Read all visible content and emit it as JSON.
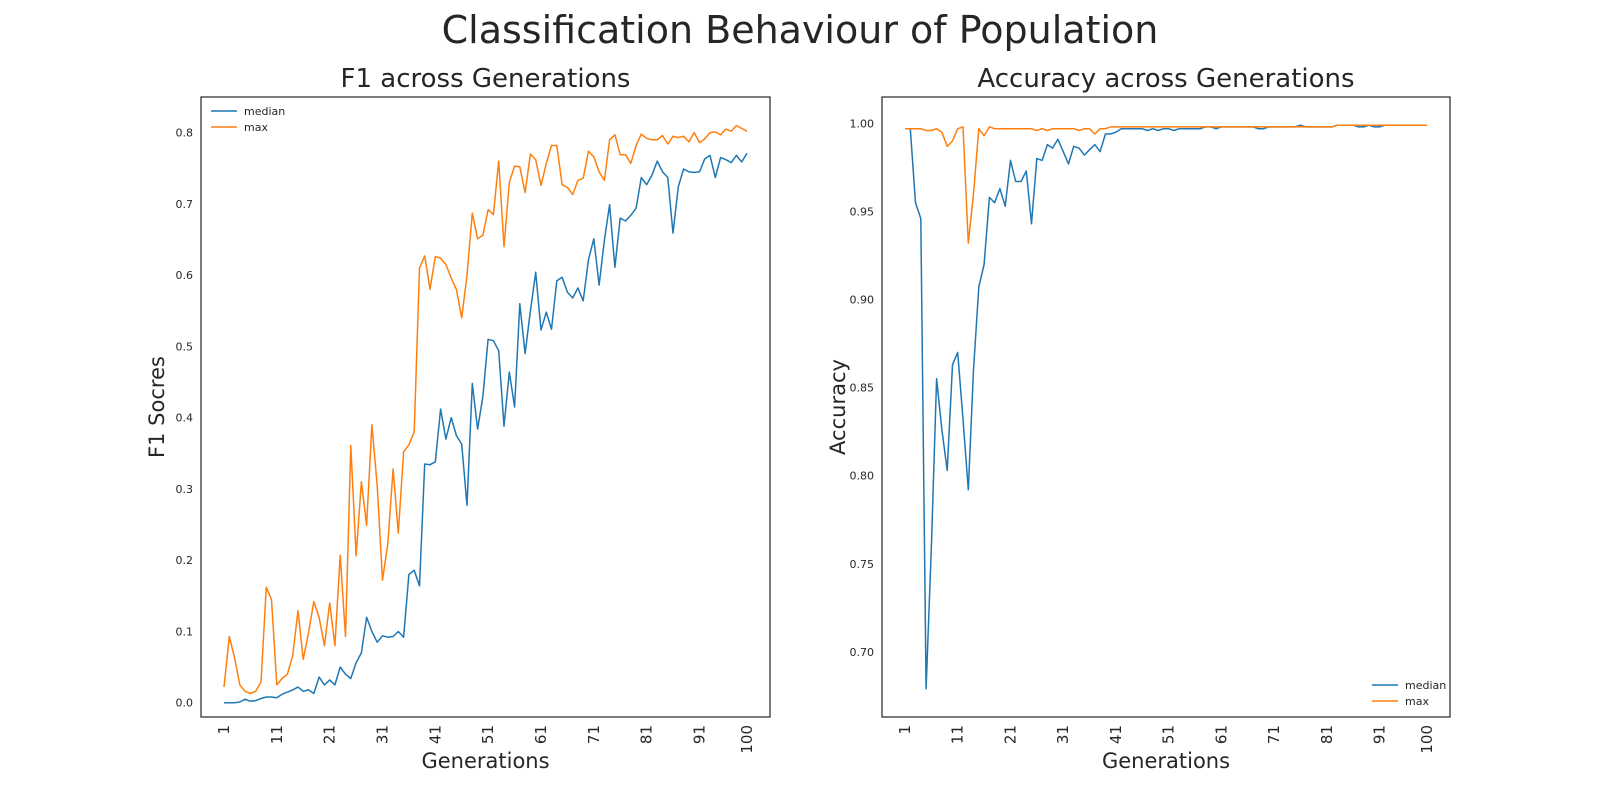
{
  "figure": {
    "title": "Classification Behaviour of Population"
  },
  "colors": {
    "median": "#1f77b4",
    "max": "#ff7f0e",
    "axes": "#262626"
  },
  "chart_data": [
    {
      "type": "line",
      "title": "F1 across Generations",
      "xlabel": "Generations",
      "ylabel": "F1 Socres",
      "xlim": [
        1,
        100
      ],
      "ylim": [
        -0.02,
        0.85
      ],
      "xticks": [
        1,
        11,
        21,
        31,
        41,
        51,
        61,
        71,
        81,
        91,
        100
      ],
      "yticks": [
        "0.0",
        "0.1",
        "0.2",
        "0.3",
        "0.4",
        "0.5",
        "0.6",
        "0.7",
        "0.8"
      ],
      "legend_position": "top-left",
      "grid": false,
      "series": [
        {
          "name": "median",
          "color": "#1f77b4",
          "values": [
            0.0,
            0.0,
            0.0,
            0.001,
            0.005,
            0.002,
            0.003,
            0.006,
            0.008,
            0.008,
            0.007,
            0.012,
            0.015,
            0.018,
            0.022,
            0.016,
            0.018,
            0.013,
            0.036,
            0.025,
            0.032,
            0.025,
            0.05,
            0.04,
            0.034,
            0.056,
            0.07,
            0.12,
            0.1,
            0.085,
            0.094,
            0.092,
            0.093,
            0.1,
            0.092,
            0.18,
            0.186,
            0.164,
            0.335,
            0.334,
            0.338,
            0.412,
            0.37,
            0.4,
            0.375,
            0.363,
            0.277,
            0.448,
            0.384,
            0.43,
            0.51,
            0.508,
            0.494,
            0.388,
            0.464,
            0.415,
            0.56,
            0.49,
            0.55,
            0.604,
            0.523,
            0.548,
            0.524,
            0.592,
            0.597,
            0.576,
            0.568,
            0.582,
            0.564,
            0.622,
            0.651,
            0.586,
            0.649,
            0.699,
            0.611,
            0.68,
            0.676,
            0.684,
            0.694,
            0.737,
            0.727,
            0.74,
            0.76,
            0.745,
            0.737,
            0.659,
            0.724,
            0.749,
            0.745,
            0.744,
            0.745,
            0.763,
            0.768,
            0.737,
            0.765,
            0.762,
            0.758,
            0.768,
            0.759,
            0.771
          ]
        },
        {
          "name": "max",
          "color": "#ff7f0e",
          "values": [
            0.022,
            0.093,
            0.063,
            0.025,
            0.016,
            0.013,
            0.016,
            0.029,
            0.162,
            0.145,
            0.025,
            0.034,
            0.04,
            0.066,
            0.129,
            0.061,
            0.098,
            0.142,
            0.12,
            0.08,
            0.14,
            0.08,
            0.207,
            0.093,
            0.361,
            0.206,
            0.31,
            0.249,
            0.39,
            0.305,
            0.172,
            0.223,
            0.328,
            0.238,
            0.352,
            0.362,
            0.38,
            0.61,
            0.627,
            0.58,
            0.626,
            0.624,
            0.615,
            0.596,
            0.58,
            0.54,
            0.6,
            0.687,
            0.651,
            0.656,
            0.692,
            0.685,
            0.76,
            0.64,
            0.73,
            0.753,
            0.752,
            0.716,
            0.77,
            0.762,
            0.726,
            0.757,
            0.782,
            0.782,
            0.727,
            0.723,
            0.713,
            0.733,
            0.736,
            0.774,
            0.766,
            0.745,
            0.733,
            0.79,
            0.797,
            0.769,
            0.769,
            0.757,
            0.782,
            0.798,
            0.792,
            0.79,
            0.79,
            0.796,
            0.784,
            0.795,
            0.793,
            0.795,
            0.787,
            0.8,
            0.786,
            0.791,
            0.8,
            0.801,
            0.797,
            0.805,
            0.802,
            0.81,
            0.806,
            0.802
          ]
        }
      ]
    },
    {
      "type": "line",
      "title": "Accuracy across Generations",
      "xlabel": "Generations",
      "ylabel": "Accuracy",
      "xlim": [
        1,
        100
      ],
      "ylim": [
        0.663,
        1.015
      ],
      "xticks": [
        1,
        11,
        21,
        31,
        41,
        51,
        61,
        71,
        81,
        91,
        100
      ],
      "yticks": [
        "0.70",
        "0.75",
        "0.80",
        "0.85",
        "0.90",
        "0.95",
        "1.00"
      ],
      "legend_position": "bottom-right",
      "grid": false,
      "series": [
        {
          "name": "median",
          "color": "#1f77b4",
          "values": [
            0.997,
            0.997,
            0.955,
            0.946,
            0.679,
            0.76,
            0.855,
            0.826,
            0.803,
            0.863,
            0.87,
            0.832,
            0.792,
            0.86,
            0.907,
            0.92,
            0.958,
            0.955,
            0.963,
            0.953,
            0.979,
            0.967,
            0.967,
            0.973,
            0.943,
            0.98,
            0.979,
            0.988,
            0.986,
            0.991,
            0.984,
            0.977,
            0.987,
            0.986,
            0.982,
            0.985,
            0.988,
            0.984,
            0.994,
            0.994,
            0.995,
            0.997,
            0.997,
            0.997,
            0.997,
            0.997,
            0.996,
            0.997,
            0.996,
            0.997,
            0.997,
            0.996,
            0.997,
            0.997,
            0.997,
            0.997,
            0.997,
            0.998,
            0.998,
            0.997,
            0.998,
            0.998,
            0.998,
            0.998,
            0.998,
            0.998,
            0.998,
            0.997,
            0.997,
            0.998,
            0.998,
            0.998,
            0.998,
            0.998,
            0.998,
            0.999,
            0.998,
            0.998,
            0.998,
            0.998,
            0.998,
            0.998,
            0.999,
            0.999,
            0.999,
            0.999,
            0.998,
            0.998,
            0.999,
            0.998,
            0.998,
            0.999,
            0.999,
            0.999,
            0.999,
            0.999,
            0.999,
            0.999,
            0.999,
            0.999
          ]
        },
        {
          "name": "max",
          "color": "#ff7f0e",
          "values": [
            0.997,
            0.997,
            0.997,
            0.997,
            0.996,
            0.996,
            0.997,
            0.995,
            0.987,
            0.99,
            0.997,
            0.998,
            0.932,
            0.96,
            0.997,
            0.993,
            0.998,
            0.997,
            0.997,
            0.997,
            0.997,
            0.997,
            0.997,
            0.997,
            0.997,
            0.996,
            0.997,
            0.996,
            0.997,
            0.997,
            0.997,
            0.997,
            0.997,
            0.996,
            0.997,
            0.997,
            0.994,
            0.997,
            0.997,
            0.998,
            0.998,
            0.998,
            0.998,
            0.998,
            0.998,
            0.998,
            0.998,
            0.998,
            0.998,
            0.998,
            0.998,
            0.998,
            0.998,
            0.998,
            0.998,
            0.998,
            0.998,
            0.998,
            0.998,
            0.998,
            0.998,
            0.998,
            0.998,
            0.998,
            0.998,
            0.998,
            0.998,
            0.998,
            0.998,
            0.998,
            0.998,
            0.998,
            0.998,
            0.998,
            0.998,
            0.998,
            0.998,
            0.998,
            0.998,
            0.998,
            0.998,
            0.998,
            0.999,
            0.999,
            0.999,
            0.999,
            0.999,
            0.999,
            0.999,
            0.999,
            0.999,
            0.999,
            0.999,
            0.999,
            0.999,
            0.999,
            0.999,
            0.999,
            0.999,
            0.999
          ]
        }
      ]
    }
  ]
}
